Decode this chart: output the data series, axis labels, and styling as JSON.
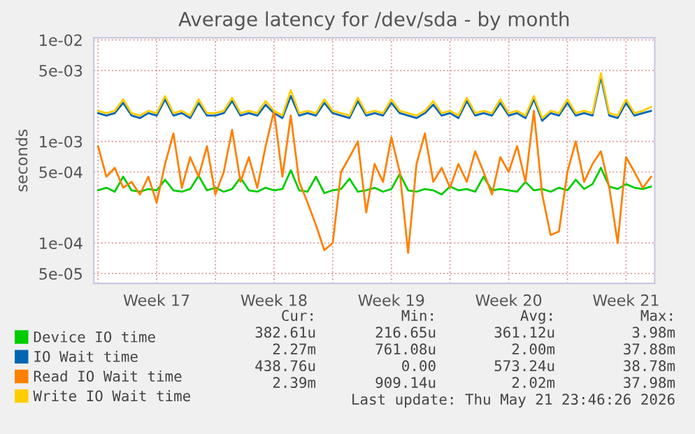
{
  "chart_data": {
    "type": "line",
    "title": "Average latency for /dev/sda - by month",
    "ylabel": "seconds",
    "x": [
      "2026-04-20T00:00",
      "2026-04-20T12:00",
      "2026-04-21T00:00",
      "2026-04-21T12:00",
      "2026-04-22T00:00",
      "2026-04-22T12:00",
      "2026-04-23T00:00",
      "2026-04-23T12:00",
      "2026-04-24T00:00",
      "2026-04-24T12:00",
      "2026-04-25T00:00",
      "2026-04-25T12:00",
      "2026-04-26T00:00",
      "2026-04-26T12:00",
      "2026-04-27T00:00",
      "2026-04-27T12:00",
      "2026-04-28T00:00",
      "2026-04-28T12:00",
      "2026-04-29T00:00",
      "2026-04-29T12:00",
      "2026-04-30T00:00",
      "2026-04-30T12:00",
      "2026-05-01T00:00",
      "2026-05-01T12:00",
      "2026-05-02T00:00",
      "2026-05-02T12:00",
      "2026-05-03T00:00",
      "2026-05-03T12:00",
      "2026-05-04T00:00",
      "2026-05-04T12:00",
      "2026-05-05T00:00",
      "2026-05-05T12:00",
      "2026-05-06T00:00",
      "2026-05-06T12:00",
      "2026-05-07T00:00",
      "2026-05-07T12:00",
      "2026-05-08T00:00",
      "2026-05-08T12:00",
      "2026-05-09T00:00",
      "2026-05-09T12:00",
      "2026-05-10T00:00",
      "2026-05-10T12:00",
      "2026-05-11T00:00",
      "2026-05-11T12:00",
      "2026-05-12T00:00",
      "2026-05-12T12:00",
      "2026-05-13T00:00",
      "2026-05-13T12:00",
      "2026-05-14T00:00",
      "2026-05-14T12:00",
      "2026-05-15T00:00",
      "2026-05-15T12:00",
      "2026-05-16T00:00",
      "2026-05-16T12:00",
      "2026-05-17T00:00",
      "2026-05-17T12:00",
      "2026-05-18T00:00",
      "2026-05-18T12:00",
      "2026-05-19T00:00",
      "2026-05-19T12:00",
      "2026-05-20T00:00",
      "2026-05-20T12:00",
      "2026-05-21T00:00",
      "2026-05-21T12:00",
      "2026-05-22T00:00",
      "2026-05-22T12:00",
      "2026-05-23T00:00"
    ],
    "series": [
      {
        "name": "Device IO time",
        "color": "#00cc00",
        "values": [
          0.00033,
          0.00035,
          0.00032,
          0.00045,
          0.00033,
          0.00032,
          0.00034,
          0.00033,
          0.00042,
          0.00033,
          0.00032,
          0.00034,
          0.00046,
          0.00033,
          0.00035,
          0.00032,
          0.00034,
          0.00044,
          0.00033,
          0.00032,
          0.00035,
          0.00033,
          0.00034,
          0.00052,
          0.00033,
          0.00032,
          0.00045,
          0.00031,
          0.00033,
          0.00034,
          0.00043,
          0.00032,
          0.00033,
          0.00035,
          0.00032,
          0.00034,
          0.00048,
          0.00033,
          0.00032,
          0.00034,
          0.00033,
          0.0003,
          0.00036,
          0.00033,
          0.00034,
          0.00032,
          0.00045,
          0.00033,
          0.00034,
          0.00033,
          0.00032,
          0.0004,
          0.00033,
          0.00034,
          0.00032,
          0.00035,
          0.00033,
          0.00042,
          0.00034,
          0.00038,
          0.00055,
          0.00036,
          0.00034,
          0.00038,
          0.00035,
          0.00034,
          0.00036
        ]
      },
      {
        "name": "IO Wait time",
        "color": "#0066b3",
        "values": [
          0.0019,
          0.0018,
          0.0019,
          0.0024,
          0.0018,
          0.0017,
          0.0019,
          0.0018,
          0.0026,
          0.0018,
          0.0019,
          0.0017,
          0.0024,
          0.0018,
          0.0018,
          0.0019,
          0.0025,
          0.0018,
          0.0019,
          0.0018,
          0.0023,
          0.0019,
          0.0017,
          0.0028,
          0.0018,
          0.0019,
          0.0018,
          0.0024,
          0.0019,
          0.0018,
          0.0017,
          0.0025,
          0.0018,
          0.0019,
          0.0018,
          0.0024,
          0.0019,
          0.0018,
          0.0017,
          0.0019,
          0.0023,
          0.0018,
          0.0019,
          0.0017,
          0.0025,
          0.0018,
          0.0019,
          0.0018,
          0.0024,
          0.0018,
          0.0019,
          0.0017,
          0.0026,
          0.0016,
          0.0019,
          0.0018,
          0.0024,
          0.0018,
          0.0019,
          0.0018,
          0.0043,
          0.0018,
          0.0017,
          0.0024,
          0.0018,
          0.0019,
          0.002
        ]
      },
      {
        "name": "Read IO Wait time",
        "color": "#ff8000",
        "values": [
          0.0009,
          0.00045,
          0.00055,
          0.00035,
          0.0004,
          0.0003,
          0.00045,
          0.00025,
          0.0006,
          0.0012,
          0.00035,
          0.0007,
          0.00045,
          0.0009,
          0.0003,
          0.0005,
          0.0013,
          0.0004,
          0.0007,
          0.00035,
          0.0009,
          0.002,
          0.00045,
          0.0018,
          0.0004,
          0.00025,
          0.00015,
          8.5e-05,
          0.0001,
          0.0005,
          0.0007,
          0.001,
          0.0002,
          0.0006,
          0.0004,
          0.0011,
          0.0005,
          8e-05,
          0.0006,
          0.0012,
          0.0004,
          0.00055,
          0.00035,
          0.0006,
          0.0004,
          0.0008,
          0.0005,
          0.0003,
          0.0007,
          0.0005,
          0.0009,
          0.0004,
          0.002,
          0.0003,
          0.00012,
          0.00013,
          0.0005,
          0.001,
          0.0004,
          0.0006,
          0.0008,
          0.00035,
          0.0001,
          0.0007,
          0.0005,
          0.00035,
          0.00045
        ]
      },
      {
        "name": "Write IO Wait time",
        "color": "#ffcc00",
        "values": [
          0.002,
          0.0019,
          0.002,
          0.0026,
          0.0019,
          0.0018,
          0.002,
          0.0019,
          0.0028,
          0.0019,
          0.002,
          0.0018,
          0.0026,
          0.0019,
          0.0019,
          0.002,
          0.0027,
          0.0019,
          0.002,
          0.0019,
          0.0025,
          0.002,
          0.0018,
          0.0032,
          0.0019,
          0.002,
          0.0019,
          0.0026,
          0.002,
          0.0019,
          0.0018,
          0.0027,
          0.0019,
          0.002,
          0.0019,
          0.0026,
          0.002,
          0.0019,
          0.0018,
          0.002,
          0.0025,
          0.0019,
          0.002,
          0.0018,
          0.0027,
          0.0019,
          0.002,
          0.0019,
          0.0026,
          0.0019,
          0.002,
          0.0018,
          0.0028,
          0.0017,
          0.002,
          0.0019,
          0.0026,
          0.0019,
          0.002,
          0.0019,
          0.0047,
          0.0019,
          0.0018,
          0.0026,
          0.0019,
          0.002,
          0.0022
        ]
      }
    ],
    "log": "y",
    "ylim": [
      4e-05,
      0.0105
    ],
    "yticks": [
      {
        "value": 5e-05,
        "label": "5e-05"
      },
      {
        "value": 0.0001,
        "label": "1e-04"
      },
      {
        "value": 0.0005,
        "label": "5e-04"
      },
      {
        "value": 0.001,
        "label": "1e-03"
      },
      {
        "value": 0.005,
        "label": "5e-03"
      },
      {
        "value": 0.01,
        "label": "1e-02"
      }
    ],
    "xlim": [
      "2026-04-19T18:00",
      "2026-05-23T05:00"
    ],
    "xticks": [
      {
        "value": "2026-04-20",
        "label": null
      },
      {
        "value": "2026-04-23T12:00",
        "label": "Week 17"
      },
      {
        "value": "2026-04-27",
        "label": null
      },
      {
        "value": "2026-04-30T12:00",
        "label": "Week 18"
      },
      {
        "value": "2026-05-04",
        "label": null
      },
      {
        "value": "2026-05-07T12:00",
        "label": "Week 19"
      },
      {
        "value": "2026-05-11",
        "label": null
      },
      {
        "value": "2026-05-14T12:00",
        "label": "Week 20"
      },
      {
        "value": "2026-05-18",
        "label": null
      },
      {
        "value": "2026-05-21T12:00",
        "label": "Week 21"
      }
    ],
    "grid": true,
    "legend": "bottom",
    "marker": "none",
    "line_style": "solid",
    "annotations": [
      "Cur:",
      "Min:",
      "Avg:",
      "Max:",
      "382.61u",
      "216.65u",
      "361.12u",
      "3.98m",
      "2.27m",
      "761.08u",
      "2.00m",
      "37.88m",
      "438.76u",
      "0.00",
      "573.24u",
      "38.78m",
      "2.39m",
      "909.14u",
      "2.02m",
      "37.98m",
      "Last update: Thu May 21 23:46:26 2026"
    ]
  }
}
